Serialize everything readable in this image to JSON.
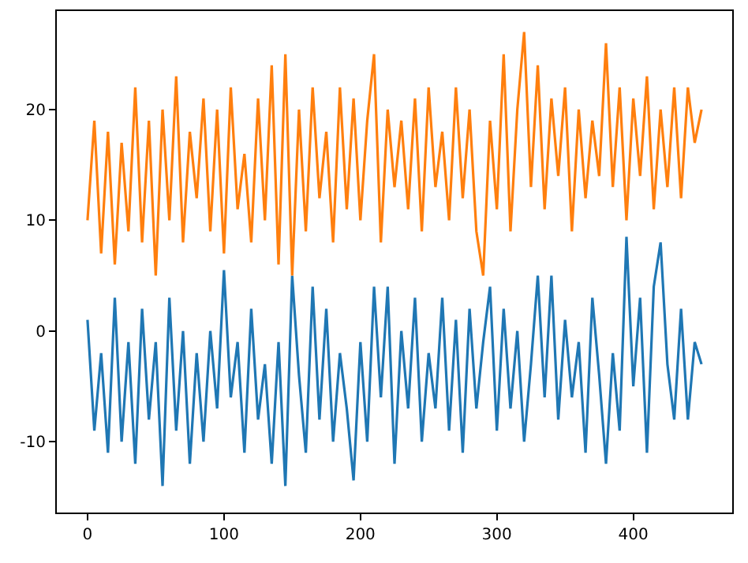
{
  "chart_data": {
    "type": "line",
    "x": [
      0,
      5,
      10,
      15,
      20,
      25,
      30,
      35,
      40,
      45,
      50,
      55,
      60,
      65,
      70,
      75,
      80,
      85,
      90,
      95,
      100,
      105,
      110,
      115,
      120,
      125,
      130,
      135,
      140,
      145,
      150,
      155,
      160,
      165,
      170,
      175,
      180,
      185,
      190,
      195,
      200,
      205,
      210,
      215,
      220,
      225,
      230,
      235,
      240,
      245,
      250,
      255,
      260,
      265,
      270,
      275,
      280,
      285,
      290,
      295,
      300,
      305,
      310,
      315,
      320,
      325,
      330,
      335,
      340,
      345,
      350,
      355,
      360,
      365,
      370,
      375,
      380,
      385,
      390,
      395,
      400,
      405,
      410,
      415,
      420,
      425,
      430,
      435,
      440,
      445,
      450
    ],
    "series": [
      {
        "color": "#1f77b4",
        "values": [
          1,
          -9,
          -2,
          -11,
          3,
          -10,
          -1,
          -12,
          2,
          -8,
          -1,
          -14,
          3,
          -9,
          0,
          -12,
          -2,
          -10,
          0,
          -7,
          5.5,
          -6,
          -1,
          -11,
          2,
          -8,
          -3,
          -12,
          -1,
          -14,
          5,
          -4,
          -11,
          4,
          -8,
          2,
          -10,
          -2,
          -7,
          -13.5,
          -1,
          -10,
          4,
          -6,
          4,
          -12,
          0,
          -7,
          3,
          -10,
          -2,
          -7,
          3,
          -9,
          1,
          -11,
          2,
          -7,
          -1,
          4,
          -9,
          2,
          -7,
          0,
          -10,
          -3,
          5,
          -6,
          5,
          -8,
          1,
          -6,
          -1,
          -11,
          3,
          -4,
          -12,
          -2,
          -9,
          8.5,
          -5,
          3,
          -11,
          4,
          8,
          -3,
          -8,
          2,
          -8,
          -1,
          -3
        ]
      },
      {
        "color": "#ff7f0e",
        "values": [
          10,
          19,
          7,
          18,
          6,
          17,
          9,
          22,
          8,
          19,
          5,
          20,
          10,
          23,
          8,
          18,
          12,
          21,
          9,
          20,
          7,
          22,
          11,
          16,
          8,
          21,
          10,
          24,
          6,
          25,
          5,
          20,
          9,
          22,
          12,
          18,
          8,
          22,
          11,
          21,
          10,
          19,
          25,
          8,
          20,
          13,
          19,
          11,
          21,
          9,
          22,
          13,
          18,
          10,
          22,
          12,
          20,
          9,
          5,
          19,
          11,
          25,
          9,
          20,
          27,
          13,
          24,
          11,
          21,
          14,
          22,
          9,
          20,
          12,
          19,
          14,
          26,
          13,
          22,
          10,
          21,
          14,
          23,
          11,
          20,
          13,
          22,
          12,
          22,
          17,
          20
        ]
      }
    ],
    "xlim": [
      -22.5,
      472.5
    ],
    "xticks": [
      0,
      100,
      200,
      300,
      400
    ],
    "ylim": [
      -16.4,
      28.9
    ],
    "yticks": [
      -10,
      0,
      10,
      20
    ]
  }
}
